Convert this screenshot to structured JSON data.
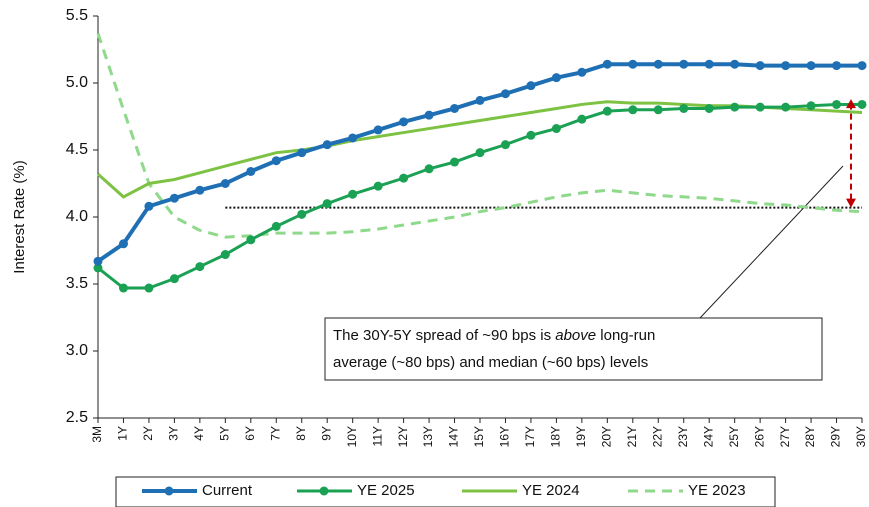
{
  "chart_data": {
    "type": "line",
    "y_label": "Interest Rate (%)",
    "categories": [
      "3M",
      "1Y",
      "2Y",
      "3Y",
      "4Y",
      "5Y",
      "6Y",
      "7Y",
      "8Y",
      "9Y",
      "10Y",
      "11Y",
      "12Y",
      "13Y",
      "14Y",
      "15Y",
      "16Y",
      "17Y",
      "18Y",
      "19Y",
      "20Y",
      "21Y",
      "22Y",
      "23Y",
      "24Y",
      "25Y",
      "26Y",
      "27Y",
      "28Y",
      "29Y",
      "30Y"
    ],
    "series": [
      {
        "name": "Current",
        "color": "#1f6fb5",
        "markers": true,
        "dash": false,
        "values": [
          3.67,
          3.8,
          4.08,
          4.14,
          4.2,
          4.25,
          4.34,
          4.42,
          4.48,
          4.54,
          4.59,
          4.65,
          4.71,
          4.76,
          4.81,
          4.87,
          4.92,
          4.98,
          5.04,
          5.08,
          5.14,
          5.14,
          5.14,
          5.14,
          5.14,
          5.14,
          5.13,
          5.13,
          5.13,
          5.13,
          5.13
        ]
      },
      {
        "name": "YE 2025",
        "color": "#1aa154",
        "markers": true,
        "dash": false,
        "values": [
          3.62,
          3.47,
          3.47,
          3.54,
          3.63,
          3.72,
          3.83,
          3.93,
          4.02,
          4.1,
          4.17,
          4.23,
          4.29,
          4.36,
          4.41,
          4.48,
          4.54,
          4.61,
          4.66,
          4.73,
          4.79,
          4.8,
          4.8,
          4.81,
          4.81,
          4.82,
          4.82,
          4.82,
          4.83,
          4.84,
          4.84
        ]
      },
      {
        "name": "YE 2024",
        "color": "#7dc242",
        "markers": false,
        "dash": false,
        "values": [
          4.32,
          4.15,
          4.25,
          4.28,
          4.33,
          4.38,
          4.43,
          4.48,
          4.5,
          4.53,
          4.57,
          4.6,
          4.63,
          4.66,
          4.69,
          4.72,
          4.75,
          4.78,
          4.81,
          4.84,
          4.86,
          4.85,
          4.85,
          4.84,
          4.83,
          4.83,
          4.82,
          4.81,
          4.8,
          4.79,
          4.78
        ]
      },
      {
        "name": "YE 2023",
        "color": "#8ed98a",
        "markers": false,
        "dash": true,
        "values": [
          5.37,
          4.8,
          4.25,
          4.0,
          3.9,
          3.85,
          3.86,
          3.88,
          3.88,
          3.88,
          3.89,
          3.91,
          3.94,
          3.97,
          4.0,
          4.04,
          4.07,
          4.11,
          4.15,
          4.18,
          4.2,
          4.18,
          4.16,
          4.15,
          4.14,
          4.12,
          4.1,
          4.09,
          4.07,
          4.05,
          4.04
        ]
      }
    ],
    "ylim": [
      2.5,
      5.5
    ],
    "yticks": [
      2.5,
      {
        "value": 3,
        "label": "3.0"
      },
      3.5,
      {
        "value": 4,
        "label": "4.0"
      },
      4.5,
      {
        "value": 5,
        "label": "5.0"
      },
      5.5
    ],
    "grid": false,
    "reference_line": {
      "value": 4.07,
      "x_from": "5Y",
      "x_to": "30Y"
    },
    "spread_arrow": {
      "from": 4.07,
      "to": 4.88,
      "color": "#c00000"
    },
    "annotation": {
      "line1": [
        "The 30Y-5Y spread of ~90 bps is ",
        "above",
        " long-run"
      ],
      "line2": "average (~80 bps) and median (~60 bps) levels"
    }
  }
}
